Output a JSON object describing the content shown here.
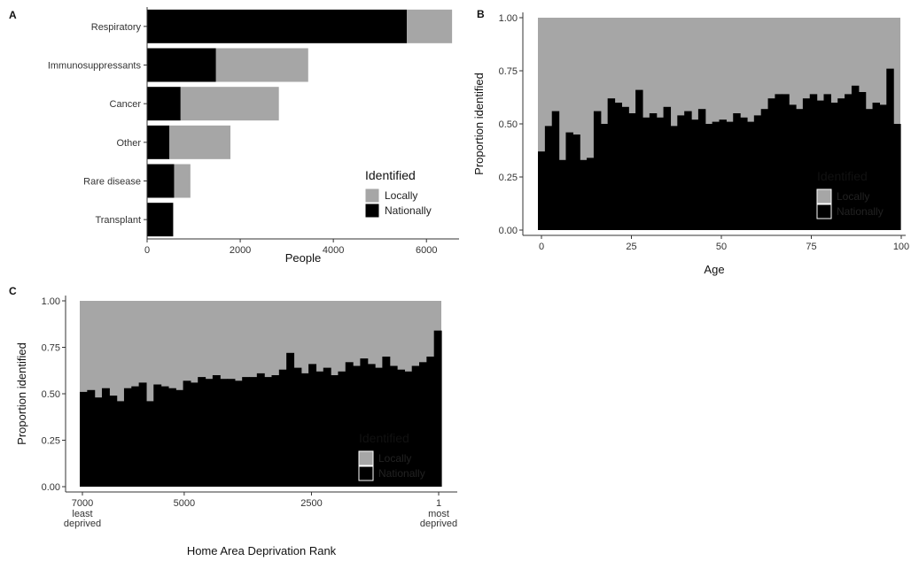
{
  "colors": {
    "locally": "#a6a6a6",
    "nationally": "#000000"
  },
  "chart_data": [
    {
      "panel_label": "A",
      "type": "bar",
      "orientation": "horizontal",
      "stacked": true,
      "categories": [
        "Respiratory",
        "Immunosuppressants",
        "Cancer",
        "Other",
        "Rare disease",
        "Transplant"
      ],
      "series": [
        {
          "name": "Nationally",
          "values": [
            5580,
            1480,
            720,
            480,
            580,
            560
          ]
        },
        {
          "name": "Locally",
          "values": [
            970,
            1980,
            2110,
            1310,
            350,
            0
          ]
        }
      ],
      "xlabel": "People",
      "ylabel": "",
      "xlim": [
        0,
        6700
      ],
      "xticks": [
        "0",
        "2000",
        "4000",
        "6000"
      ],
      "xtick_values": [
        0,
        2000,
        4000,
        6000
      ],
      "legend": {
        "title": "Identified",
        "entries": [
          "Locally",
          "Nationally"
        ],
        "placement": "bottom-right"
      },
      "grid": false
    },
    {
      "panel_label": "B",
      "type": "bar",
      "stacked": true,
      "xlabel": "Age",
      "ylabel": "Proportion identified",
      "xlim": [
        0,
        100
      ],
      "ylim": [
        0,
        1
      ],
      "xticks": [
        "0",
        "25",
        "50",
        "75",
        "100"
      ],
      "xtick_values": [
        0,
        25,
        50,
        75,
        100
      ],
      "yticks": [
        "0.00",
        "0.25",
        "0.50",
        "0.75",
        "1.00"
      ],
      "ytick_values": [
        0,
        0.25,
        0.5,
        0.75,
        1
      ],
      "series": [
        {
          "name": "Nationally",
          "values": [
            0.37,
            0.49,
            0.56,
            0.33,
            0.46,
            0.45,
            0.33,
            0.34,
            0.56,
            0.5,
            0.62,
            0.6,
            0.58,
            0.55,
            0.66,
            0.53,
            0.55,
            0.53,
            0.58,
            0.49,
            0.54,
            0.56,
            0.52,
            0.57,
            0.5,
            0.51,
            0.52,
            0.51,
            0.55,
            0.53,
            0.51,
            0.54,
            0.57,
            0.62,
            0.64,
            0.64,
            0.59,
            0.57,
            0.62,
            0.64,
            0.61,
            0.64,
            0.6,
            0.62,
            0.64,
            0.68,
            0.65,
            0.57,
            0.6,
            0.59,
            0.76,
            0.5
          ]
        },
        {
          "name": "Locally",
          "values": [
            0.63,
            0.51,
            0.44,
            0.67,
            0.54,
            0.55,
            0.67,
            0.66,
            0.44,
            0.5,
            0.38,
            0.4,
            0.42,
            0.45,
            0.34,
            0.47,
            0.45,
            0.47,
            0.42,
            0.51,
            0.46,
            0.44,
            0.48,
            0.43,
            0.5,
            0.49,
            0.48,
            0.49,
            0.45,
            0.47,
            0.49,
            0.46,
            0.43,
            0.38,
            0.36,
            0.36,
            0.41,
            0.43,
            0.38,
            0.36,
            0.39,
            0.36,
            0.4,
            0.38,
            0.36,
            0.32,
            0.35,
            0.43,
            0.4,
            0.41,
            0.24,
            0.5
          ]
        }
      ],
      "legend": {
        "title": "Identified",
        "entries": [
          "Locally",
          "Nationally"
        ],
        "placement": "bottom-right"
      },
      "grid": false
    },
    {
      "panel_label": "C",
      "type": "bar",
      "stacked": true,
      "xlabel": "Home Area Deprivation Rank",
      "ylabel": "Proportion identified",
      "xlim": [
        7000,
        1
      ],
      "ylim": [
        0,
        1
      ],
      "xticks": [
        "7000",
        "5000",
        "2500",
        "1"
      ],
      "xtick_values": [
        7000,
        5000,
        2500,
        1
      ],
      "xtick_sublabels": {
        "7000": [
          "least",
          "deprived"
        ],
        "1": [
          "most",
          "deprived"
        ]
      },
      "yticks": [
        "0.00",
        "0.25",
        "0.50",
        "0.75",
        "1.00"
      ],
      "ytick_values": [
        0,
        0.25,
        0.5,
        0.75,
        1
      ],
      "series": [
        {
          "name": "Nationally",
          "values": [
            0.51,
            0.52,
            0.48,
            0.53,
            0.49,
            0.46,
            0.53,
            0.54,
            0.56,
            0.46,
            0.55,
            0.54,
            0.53,
            0.52,
            0.57,
            0.56,
            0.59,
            0.58,
            0.6,
            0.58,
            0.58,
            0.57,
            0.59,
            0.59,
            0.61,
            0.59,
            0.6,
            0.63,
            0.72,
            0.64,
            0.61,
            0.66,
            0.62,
            0.64,
            0.6,
            0.62,
            0.67,
            0.65,
            0.69,
            0.66,
            0.64,
            0.7,
            0.65,
            0.63,
            0.62,
            0.65,
            0.67,
            0.7,
            0.84
          ]
        },
        {
          "name": "Locally",
          "values": [
            0.49,
            0.48,
            0.52,
            0.47,
            0.51,
            0.54,
            0.47,
            0.46,
            0.44,
            0.54,
            0.45,
            0.46,
            0.47,
            0.48,
            0.43,
            0.44,
            0.41,
            0.42,
            0.4,
            0.42,
            0.42,
            0.43,
            0.41,
            0.41,
            0.39,
            0.41,
            0.4,
            0.37,
            0.28,
            0.36,
            0.39,
            0.34,
            0.38,
            0.36,
            0.4,
            0.38,
            0.33,
            0.35,
            0.31,
            0.34,
            0.36,
            0.3,
            0.35,
            0.37,
            0.38,
            0.35,
            0.33,
            0.3,
            0.16
          ]
        }
      ],
      "legend": {
        "title": "Identified",
        "entries": [
          "Locally",
          "Nationally"
        ],
        "placement": "bottom-right"
      },
      "grid": false
    }
  ]
}
